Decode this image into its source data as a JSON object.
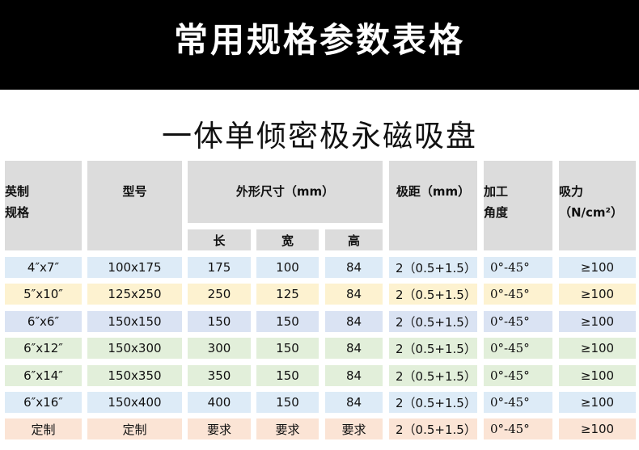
{
  "banner_title": "常用规格参数表格",
  "subtitle": "一体单倾密极永磁吸盘",
  "headers": {
    "inch_spec": [
      "英制",
      "规格"
    ],
    "model": "型号",
    "dimensions": "外形尺寸（mm）",
    "dim_sub": [
      "长",
      "宽",
      "高"
    ],
    "pole_pitch": "极距（mm）",
    "angle": [
      "加工",
      "角度"
    ],
    "force": [
      "吸力",
      "（N/cm²）"
    ]
  },
  "row_colors": [
    "#ddebf7",
    "#fdf2d0",
    "#dae3f3",
    "#e2efda",
    "#e2efda",
    "#ddebf7",
    "#fbe4d5"
  ],
  "header_color": "#dcdcdc",
  "rows": [
    [
      "4″x7″",
      "100x175",
      "175",
      "100",
      "84",
      "2（0.5+1.5）",
      "0°-45°",
      "≥100"
    ],
    [
      "5″x10″",
      "125x250",
      "250",
      "125",
      "84",
      "2（0.5+1.5）",
      "0°-45°",
      "≥100"
    ],
    [
      "6″x6″",
      "150x150",
      "150",
      "150",
      "84",
      "2（0.5+1.5）",
      "0°-45°",
      "≥100"
    ],
    [
      "6″x12″",
      "150x300",
      "300",
      "150",
      "84",
      "2（0.5+1.5）",
      "0°-45°",
      "≥100"
    ],
    [
      "6″x14″",
      "150x350",
      "350",
      "150",
      "84",
      "2（0.5+1.5）",
      "0°-45°",
      "≥100"
    ],
    [
      "6″x16″",
      "150x400",
      "400",
      "150",
      "84",
      "2（0.5+1.5）",
      "0°-45°",
      "≥100"
    ],
    [
      "定制",
      "定制",
      "要求",
      "要求",
      "要求",
      "2（0.5+1.5）",
      "0°-45°",
      "≥100"
    ]
  ]
}
